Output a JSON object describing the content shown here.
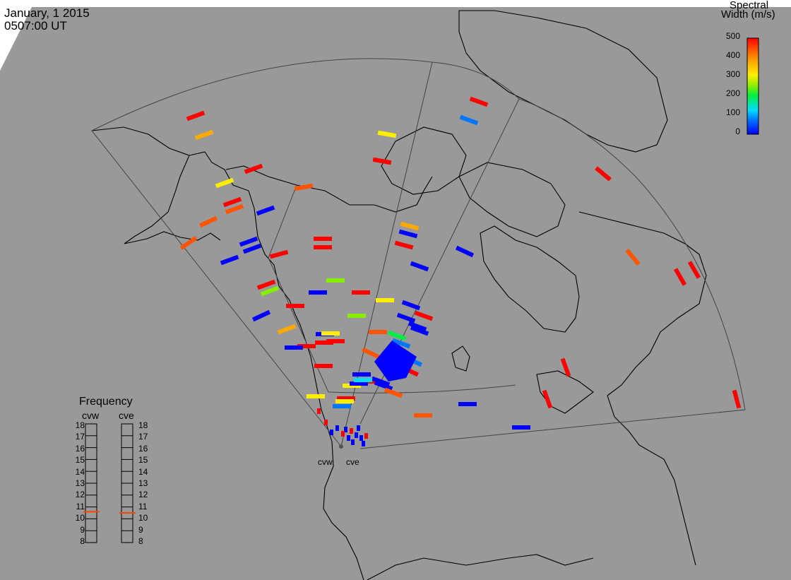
{
  "header": {
    "date": "January, 1 2015",
    "time": "0507:00 UT"
  },
  "colorbar": {
    "title_line1": "Spectral",
    "title_line2": "Width (m/s)",
    "ticks": [
      "500",
      "400",
      "300",
      "200",
      "100",
      "0"
    ],
    "range": [
      0,
      500
    ],
    "colors": [
      "#0000ff",
      "#0077ff",
      "#00ddff",
      "#00ee44",
      "#88ee00",
      "#ffee00",
      "#ffaa00",
      "#ff5500",
      "#ff0000"
    ]
  },
  "frequency_panel": {
    "title": "Frequency",
    "radars": [
      {
        "code": "cvw",
        "frequency_mhz": 10.6,
        "tick_side": "left"
      },
      {
        "code": "cve",
        "frequency_mhz": 10.5,
        "tick_side": "right"
      }
    ],
    "ticks": [
      "18",
      "17",
      "16",
      "15",
      "14",
      "13",
      "12",
      "11",
      "10",
      "9",
      "8"
    ],
    "range": [
      8,
      18
    ],
    "marker_color": "#ff4400"
  },
  "sites": [
    {
      "code": "cvw"
    },
    {
      "code": "cve"
    }
  ],
  "map_colors": {
    "background": "#999999",
    "coastline": "#000000",
    "fov_line": "#444444",
    "daylight": "#ffffff"
  }
}
